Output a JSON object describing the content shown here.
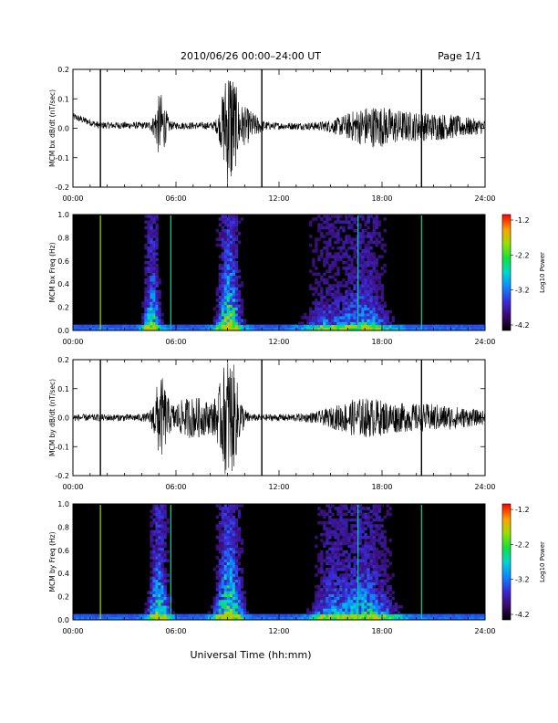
{
  "header": {
    "title": "2010/06/26  00:00–24:00 UT",
    "page": "Page 1/1"
  },
  "footer": {
    "xlabel": "Universal Time (hh:mm)"
  },
  "colors": {
    "trace": "#000000",
    "spectrogram_background": "#000000"
  },
  "chart_data": [
    {
      "type": "line",
      "panel": "bx-waveform",
      "ylabel": "MCM bx dB/dt (nT/sec)",
      "x_tick_labels": [
        "00:00",
        "06:00",
        "12:00",
        "18:00",
        "24:00"
      ],
      "y_tick_labels": [
        "-0.2",
        "-0.1",
        "0.0",
        "0.1",
        "0.2"
      ],
      "xlim": [
        0,
        24
      ],
      "ylim": [
        -0.2,
        0.2
      ],
      "x_unit": "hours UT",
      "baseline_offset_hours": [
        [
          0,
          0.04
        ],
        [
          1.5,
          0.01
        ],
        [
          24,
          0.005
        ]
      ],
      "bursts": [
        {
          "center": 5.1,
          "width": 0.35,
          "amplitude": 0.1
        },
        {
          "center": 9.1,
          "width": 0.45,
          "amplitude": 0.2
        },
        {
          "center": 10.0,
          "width": 0.8,
          "amplitude": 0.05
        },
        {
          "center": 17.3,
          "width": 1.8,
          "amplitude": 0.05
        },
        {
          "center": 20.8,
          "width": 3.0,
          "amplitude": 0.035
        }
      ],
      "spikes_hours": [
        1.6,
        11.0,
        20.3
      ],
      "spike_extent": [
        -0.2,
        0.2
      ]
    },
    {
      "type": "heatmap",
      "panel": "bx-spectrogram",
      "ylabel": "MCM bx Freq (Hz)",
      "x_tick_labels": [
        "00:00",
        "06:00",
        "12:00",
        "18:00",
        "24:00"
      ],
      "y_tick_labels": [
        "0.0",
        "0.2",
        "0.4",
        "0.6",
        "0.8",
        "1.0"
      ],
      "xlim": [
        0,
        24
      ],
      "ylim": [
        0,
        1.0
      ],
      "colorbar_label": "Log10 Power",
      "colorbar_ticks": [
        "-1.2",
        "-2.2",
        "-3.2",
        "-4.2"
      ],
      "colorbar_range": [
        -4.2,
        -1.2
      ],
      "activity_bands": [
        {
          "center": 4.6,
          "width": 0.5,
          "strength": 0.85,
          "reach": 0.55
        },
        {
          "center": 9.1,
          "width": 0.7,
          "strength": 1.0,
          "reach": 0.7
        },
        {
          "center": 16.9,
          "width": 1.6,
          "strength": 0.7,
          "reach": 0.35
        },
        {
          "center": 14.5,
          "width": 1.2,
          "strength": 0.45,
          "reach": 0.2
        }
      ],
      "vertical_lines_hours": [
        1.6,
        5.7,
        16.6,
        20.3
      ]
    },
    {
      "type": "line",
      "panel": "by-waveform",
      "ylabel": "MCM by dB/dt (nT/sec)",
      "x_tick_labels": [
        "00:00",
        "06:00",
        "12:00",
        "18:00",
        "24:00"
      ],
      "y_tick_labels": [
        "-0.2",
        "-0.1",
        "0.0",
        "0.1",
        "0.2"
      ],
      "xlim": [
        0,
        24
      ],
      "ylim": [
        -0.2,
        0.2
      ],
      "x_unit": "hours UT",
      "baseline_offset_hours": [
        [
          0,
          0.0
        ],
        [
          24,
          0.0
        ]
      ],
      "bursts": [
        {
          "center": 5.1,
          "width": 0.4,
          "amplitude": 0.12
        },
        {
          "center": 9.1,
          "width": 0.6,
          "amplitude": 0.2
        },
        {
          "center": 7.0,
          "width": 1.5,
          "amplitude": 0.06
        },
        {
          "center": 16.8,
          "width": 2.0,
          "amplitude": 0.05
        },
        {
          "center": 20.8,
          "width": 3.0,
          "amplitude": 0.035
        }
      ],
      "spikes_hours": [
        1.6,
        11.0,
        20.3
      ],
      "spike_extent": [
        -0.2,
        0.2
      ]
    },
    {
      "type": "heatmap",
      "panel": "by-spectrogram",
      "ylabel": "MCM by Freq (Hz)",
      "x_tick_labels": [
        "00:00",
        "06:00",
        "12:00",
        "18:00",
        "24:00"
      ],
      "y_tick_labels": [
        "0.0",
        "0.2",
        "0.4",
        "0.6",
        "0.8",
        "1.0"
      ],
      "xlim": [
        0,
        24
      ],
      "ylim": [
        0,
        1.0
      ],
      "colorbar_label": "Log10 Power",
      "colorbar_ticks": [
        "-1.2",
        "-2.2",
        "-3.2",
        "-4.2"
      ],
      "colorbar_range": [
        -4.2,
        -1.2
      ],
      "activity_bands": [
        {
          "center": 5.0,
          "width": 0.6,
          "strength": 0.95,
          "reach": 0.6
        },
        {
          "center": 9.1,
          "width": 0.8,
          "strength": 1.0,
          "reach": 0.75
        },
        {
          "center": 17.0,
          "width": 1.8,
          "strength": 0.75,
          "reach": 0.45
        },
        {
          "center": 14.8,
          "width": 1.0,
          "strength": 0.45,
          "reach": 0.25
        }
      ],
      "vertical_lines_hours": [
        1.6,
        5.7,
        16.6,
        20.3
      ]
    }
  ]
}
